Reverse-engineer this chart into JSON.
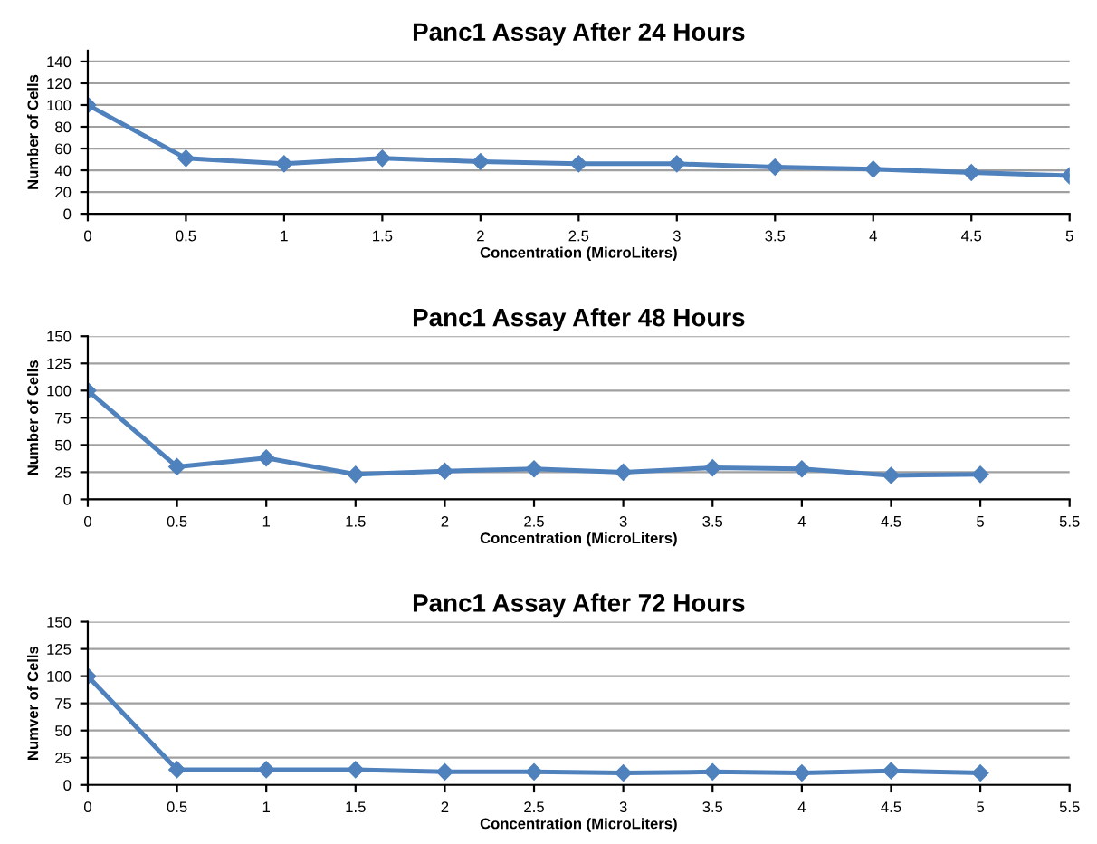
{
  "chart_data": [
    {
      "type": "line",
      "title": "Panc1 Assay After 24 Hours",
      "xlabel": "Concentration (MicroLiters)",
      "ylabel": "Number of Cells",
      "x": [
        0,
        0.5,
        1,
        1.5,
        2,
        2.5,
        3,
        3.5,
        4,
        4.5,
        5
      ],
      "series": [
        {
          "color": "#4f81bd",
          "values": [
            100,
            51,
            46,
            51,
            48,
            46,
            46,
            43,
            41,
            38,
            35
          ]
        }
      ],
      "xlim": [
        0,
        5
      ],
      "xticks": [
        0,
        0.5,
        1,
        1.5,
        2,
        2.5,
        3,
        3.5,
        4,
        4.5,
        5
      ],
      "ylim": [
        0,
        150
      ],
      "yticks": [
        0,
        20,
        40,
        60,
        80,
        100,
        120,
        140
      ],
      "grid": "y",
      "marker": "diamond",
      "line_style": "solid"
    },
    {
      "type": "line",
      "title": "Panc1 Assay After 48 Hours",
      "xlabel": "Concentration (MicroLiters)",
      "ylabel": "Number of Cells",
      "x": [
        0,
        0.5,
        1,
        1.5,
        2,
        2.5,
        3,
        3.5,
        4,
        4.5,
        5
      ],
      "series": [
        {
          "color": "#4f81bd",
          "values": [
            100,
            30,
            38,
            23,
            26,
            28,
            25,
            29,
            28,
            22,
            23
          ]
        }
      ],
      "xlim": [
        0,
        5.5
      ],
      "xticks": [
        0,
        0.5,
        1,
        1.5,
        2,
        2.5,
        3,
        3.5,
        4,
        4.5,
        5,
        5.5
      ],
      "ylim": [
        0,
        150
      ],
      "yticks": [
        0,
        25,
        50,
        75,
        100,
        125,
        150
      ],
      "grid": "y",
      "marker": "diamond",
      "line_style": "solid"
    },
    {
      "type": "line",
      "title": "Panc1 Assay After 72 Hours",
      "xlabel": "Concentration (MicroLiters)",
      "ylabel": "Numver of Cells",
      "x": [
        0,
        0.5,
        1,
        1.5,
        2,
        2.5,
        3,
        3.5,
        4,
        4.5,
        5
      ],
      "series": [
        {
          "color": "#4f81bd",
          "values": [
            100,
            14,
            14,
            14,
            12,
            12,
            11,
            12,
            11,
            13,
            11
          ]
        }
      ],
      "xlim": [
        0,
        5.5
      ],
      "xticks": [
        0,
        0.5,
        1,
        1.5,
        2,
        2.5,
        3,
        3.5,
        4,
        4.5,
        5,
        5.5
      ],
      "ylim": [
        0,
        150
      ],
      "yticks": [
        0,
        25,
        50,
        75,
        100,
        125,
        150
      ],
      "grid": "y",
      "marker": "diamond",
      "line_style": "solid"
    }
  ]
}
